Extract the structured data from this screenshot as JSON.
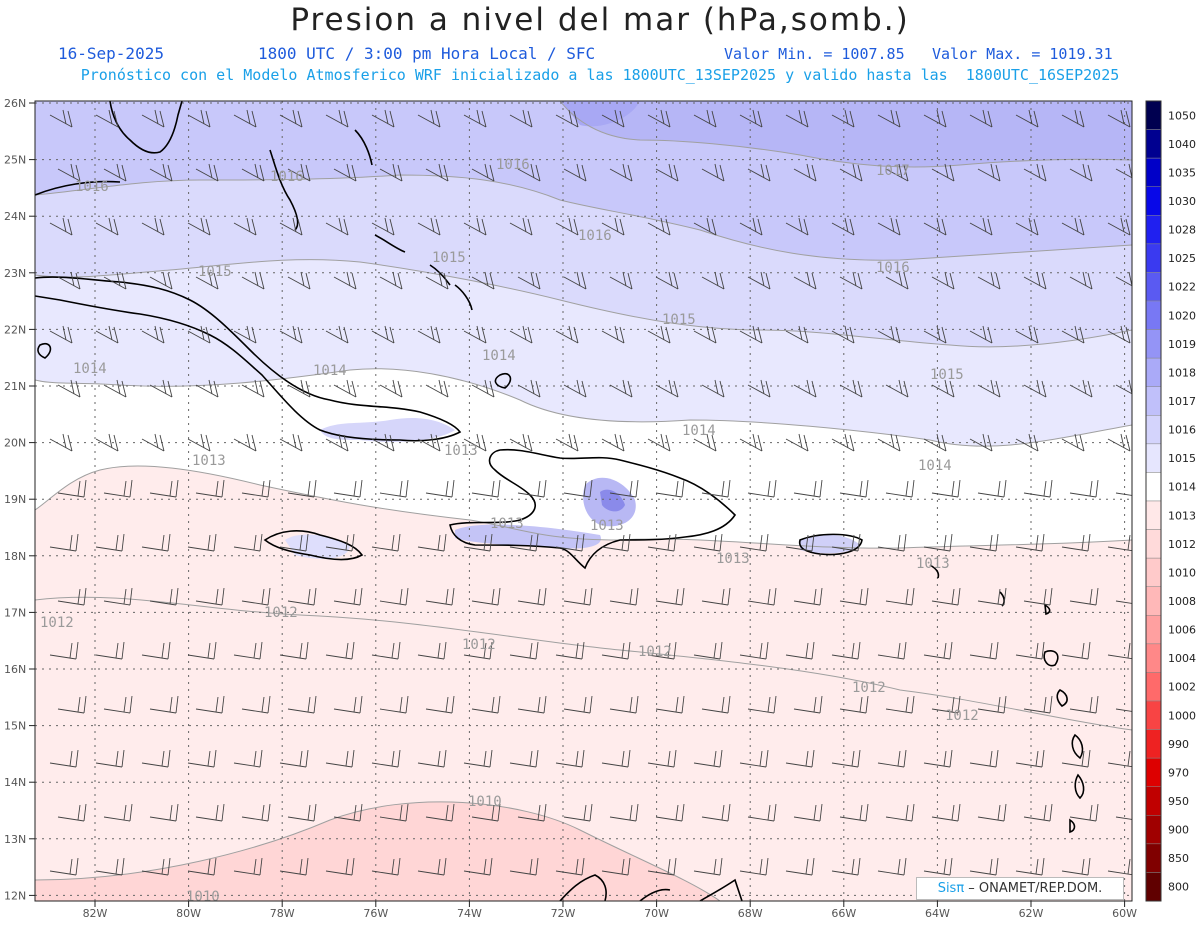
{
  "title": "Presion a nivel del mar (hPa,somb.)",
  "date": "16-Sep-2025",
  "time": "1800 UTC / 3:00 pm Hora Local / SFC",
  "vmin": "Valor Min. = 1007.85",
  "vmax": "Valor Max. = 1019.31",
  "model_line": "Pronóstico con el Modelo Atmosferico WRF inicializado a las 1800UTC_13SEP2025 y valido hasta las  1800UTC_16SEP2025",
  "credit_sis": "Sisπ",
  "credit_rest": " – ONAMET/REP.DOM.",
  "lat_labels": [
    "26N",
    "25N",
    "24N",
    "23N",
    "22N",
    "21N",
    "20N",
    "19N",
    "18N",
    "17N",
    "16N",
    "15N",
    "14N",
    "13N",
    "12N"
  ],
  "lon_labels": [
    "82W",
    "80W",
    "78W",
    "76W",
    "74W",
    "72W",
    "70W",
    "68W",
    "66W",
    "64W",
    "62W",
    "60W"
  ],
  "colorbar": {
    "labels": [
      "1050",
      "1040",
      "1035",
      "1030",
      "1028",
      "1025",
      "1022",
      "1020",
      "1019",
      "1018",
      "1017",
      "1016",
      "1015",
      "1014",
      "1013",
      "1012",
      "1010",
      "1008",
      "1006",
      "1004",
      "1002",
      "1000",
      "990",
      "970",
      "950",
      "900",
      "850",
      "800"
    ],
    "colors": [
      "#000050",
      "#000090",
      "#0000c8",
      "#0808e8",
      "#2020f0",
      "#3a3af0",
      "#5a5af2",
      "#7878f4",
      "#9494f6",
      "#aaaaf8",
      "#c0c0fa",
      "#d4d4fc",
      "#e6e6fe",
      "#ffffff",
      "#ffe8e8",
      "#ffdada",
      "#ffcaca",
      "#ffb8b8",
      "#ffa0a0",
      "#ff8888",
      "#ff6a6a",
      "#f84444",
      "#ee2222",
      "#dd0000",
      "#c00000",
      "#a00000",
      "#800000",
      "#600000"
    ]
  },
  "contour_labels": [
    {
      "t": "1016"
    },
    {
      "t": "1016"
    },
    {
      "t": "1016"
    },
    {
      "t": "1017"
    },
    {
      "t": "1016"
    },
    {
      "t": "1016"
    },
    {
      "t": "1015"
    },
    {
      "t": "1015"
    },
    {
      "t": "1015"
    },
    {
      "t": "1015"
    },
    {
      "t": "1014"
    },
    {
      "t": "1014"
    },
    {
      "t": "1014"
    },
    {
      "t": "1014"
    },
    {
      "t": "1014"
    },
    {
      "t": "1013"
    },
    {
      "t": "1013"
    },
    {
      "t": "1013"
    },
    {
      "t": "1013"
    },
    {
      "t": "1013"
    },
    {
      "t": "1013"
    },
    {
      "t": "1012"
    },
    {
      "t": "1012"
    },
    {
      "t": "1012"
    },
    {
      "t": "1012"
    },
    {
      "t": "1012"
    },
    {
      "t": "1012"
    },
    {
      "t": "1010"
    },
    {
      "t": "1010"
    }
  ]
}
